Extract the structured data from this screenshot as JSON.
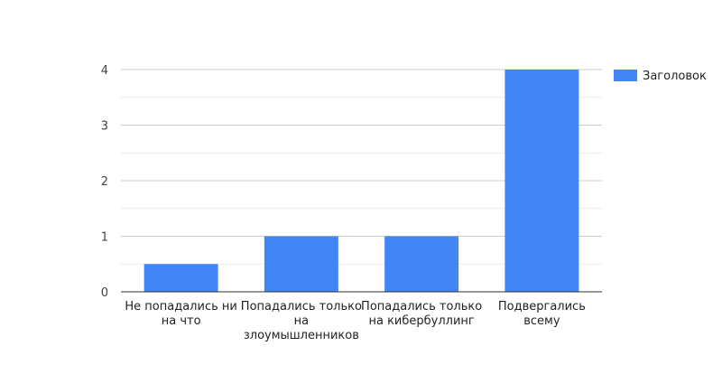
{
  "chart_data": {
    "type": "bar",
    "categories": [
      [
        "Не попадались ни",
        "на что"
      ],
      [
        "Попадались только",
        "на",
        "злоумышленников"
      ],
      [
        "Попадались только",
        "на кибербуллинг"
      ],
      [
        "Подвергались",
        "всему"
      ]
    ],
    "series": [
      {
        "name": "Заголовок",
        "values": [
          0.5,
          1,
          1,
          4
        ],
        "color": "#4285f4"
      }
    ],
    "ylim": [
      0,
      4
    ],
    "yticks": [
      "0",
      "1",
      "2",
      "3",
      "4"
    ],
    "grid": true,
    "legend_position": "right"
  }
}
